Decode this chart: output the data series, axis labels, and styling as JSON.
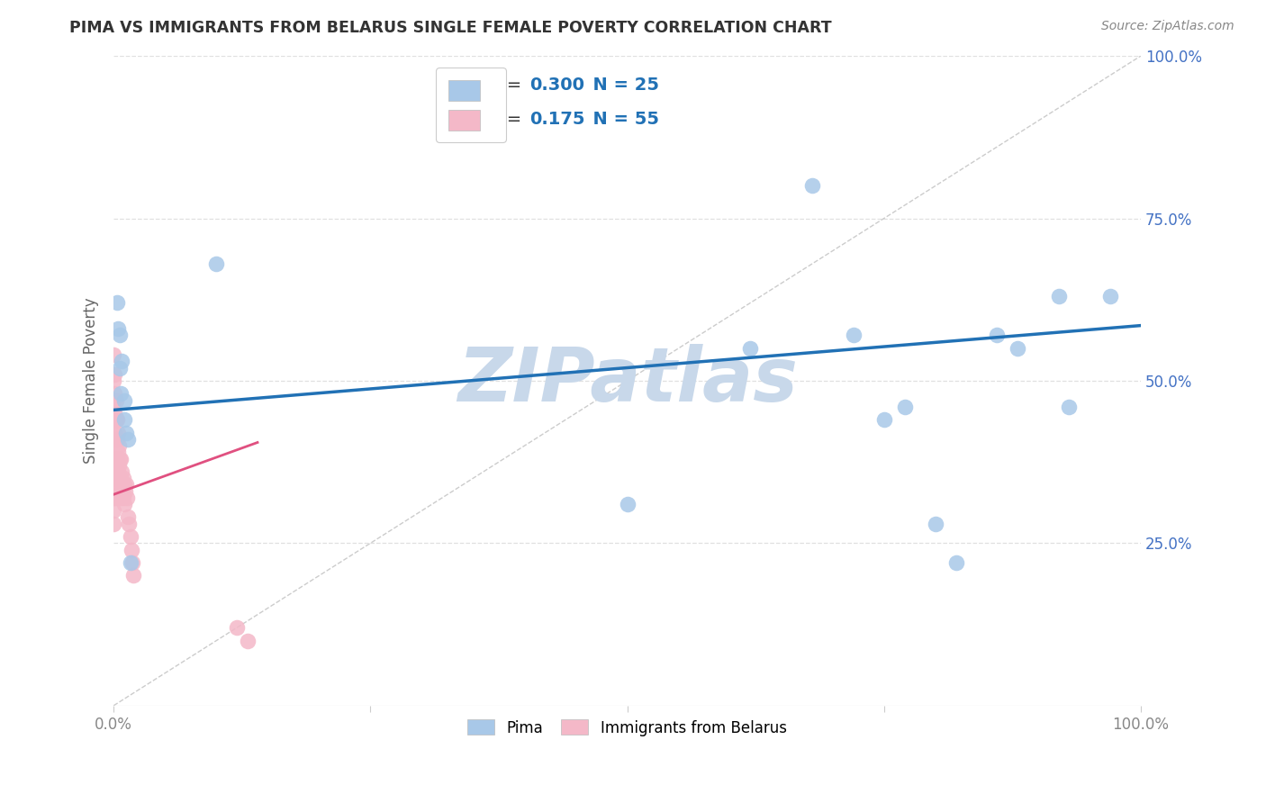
{
  "title": "PIMA VS IMMIGRANTS FROM BELARUS SINGLE FEMALE POVERTY CORRELATION CHART",
  "source": "Source: ZipAtlas.com",
  "ylabel": "Single Female Poverty",
  "watermark": "ZIPatlas",
  "legend_blue_R": "0.300",
  "legend_blue_N": "25",
  "legend_pink_R": "0.175",
  "legend_pink_N": "55",
  "blue_scatter_x": [
    0.003,
    0.004,
    0.006,
    0.006,
    0.007,
    0.008,
    0.01,
    0.01,
    0.012,
    0.014,
    0.016,
    0.1,
    0.5,
    0.62,
    0.68,
    0.72,
    0.75,
    0.77,
    0.8,
    0.82,
    0.86,
    0.88,
    0.92,
    0.93,
    0.97
  ],
  "blue_scatter_y": [
    0.62,
    0.58,
    0.57,
    0.52,
    0.48,
    0.53,
    0.47,
    0.44,
    0.42,
    0.41,
    0.22,
    0.68,
    0.31,
    0.55,
    0.8,
    0.57,
    0.44,
    0.46,
    0.28,
    0.22,
    0.57,
    0.55,
    0.63,
    0.46,
    0.63
  ],
  "pink_scatter_x": [
    0.0,
    0.0,
    0.0,
    0.0,
    0.0,
    0.0,
    0.0,
    0.0,
    0.0,
    0.0,
    0.001,
    0.001,
    0.001,
    0.001,
    0.001,
    0.001,
    0.001,
    0.002,
    0.002,
    0.002,
    0.002,
    0.002,
    0.003,
    0.003,
    0.003,
    0.003,
    0.004,
    0.004,
    0.004,
    0.004,
    0.005,
    0.005,
    0.005,
    0.006,
    0.006,
    0.007,
    0.007,
    0.007,
    0.008,
    0.008,
    0.009,
    0.009,
    0.01,
    0.01,
    0.011,
    0.012,
    0.013,
    0.014,
    0.015,
    0.016,
    0.017,
    0.018,
    0.019,
    0.12,
    0.13
  ],
  "pink_scatter_y": [
    0.54,
    0.5,
    0.47,
    0.44,
    0.41,
    0.38,
    0.35,
    0.32,
    0.3,
    0.28,
    0.51,
    0.48,
    0.45,
    0.42,
    0.38,
    0.35,
    0.32,
    0.47,
    0.44,
    0.41,
    0.38,
    0.35,
    0.44,
    0.41,
    0.38,
    0.35,
    0.42,
    0.39,
    0.36,
    0.33,
    0.4,
    0.37,
    0.34,
    0.38,
    0.35,
    0.38,
    0.35,
    0.32,
    0.36,
    0.33,
    0.35,
    0.32,
    0.34,
    0.31,
    0.33,
    0.34,
    0.32,
    0.29,
    0.28,
    0.26,
    0.24,
    0.22,
    0.2,
    0.12,
    0.1
  ],
  "blue_line_x": [
    0.0,
    1.0
  ],
  "blue_line_y": [
    0.455,
    0.585
  ],
  "pink_line_x": [
    0.0,
    0.14
  ],
  "pink_line_y": [
    0.325,
    0.405
  ],
  "diag_line_x": [
    0.0,
    1.0
  ],
  "diag_line_y": [
    0.0,
    1.0
  ],
  "xlim": [
    0.0,
    1.0
  ],
  "ylim": [
    0.0,
    1.0
  ],
  "xticks": [
    0.0,
    0.25,
    0.5,
    0.75,
    1.0
  ],
  "yticks": [
    0.0,
    0.25,
    0.5,
    0.75,
    1.0
  ],
  "bg_color": "#ffffff",
  "blue_color": "#a8c8e8",
  "pink_color": "#f4b8c8",
  "blue_line_color": "#2171b5",
  "pink_line_color": "#e05080",
  "diag_line_color": "#cccccc",
  "grid_color": "#e0e0e0",
  "title_color": "#333333",
  "watermark_color": "#c8d8ea",
  "source_color": "#888888",
  "right_ytick_color": "#4472c4",
  "tick_label_color": "#888888"
}
